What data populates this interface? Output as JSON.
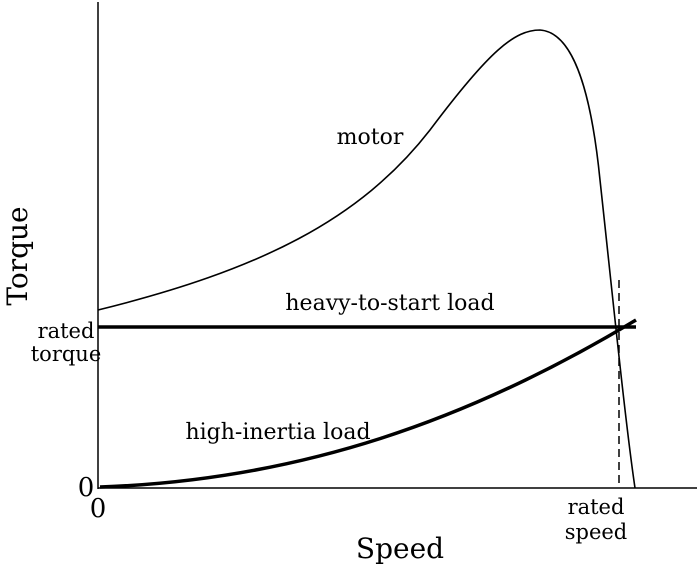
{
  "diagram": {
    "axes": {
      "x_title": "Speed",
      "y_title": "Torque",
      "x_zero": "0",
      "y_zero": "0",
      "y_marker_line1": "rated",
      "y_marker_line2": "torque",
      "x_marker_line1": "rated",
      "x_marker_line2": "speed"
    },
    "curves": {
      "motor": "motor",
      "heavy_to_start": "heavy-to-start load",
      "high_inertia": "high-inertia load"
    },
    "colors": {
      "line": "#000000",
      "background": "#ffffff"
    }
  }
}
